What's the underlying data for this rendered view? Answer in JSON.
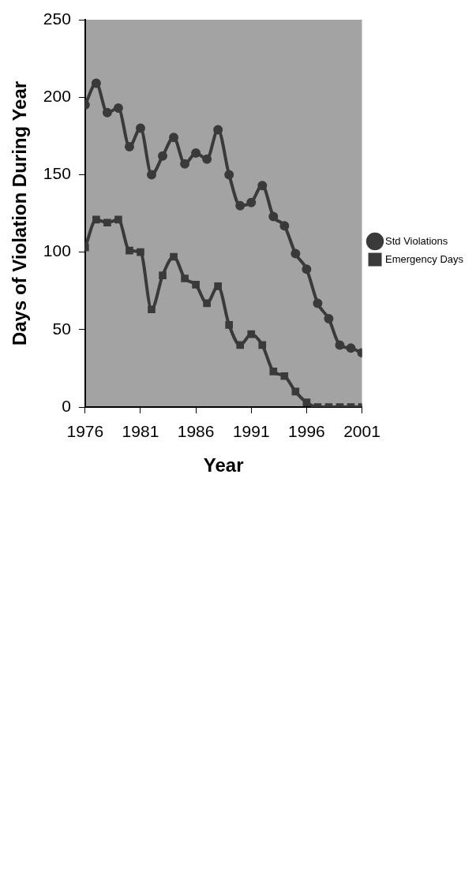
{
  "chart_data": {
    "type": "line",
    "xlabel": "Year",
    "ylabel": "Days of Violation During Year",
    "x": [
      1976,
      1977,
      1978,
      1979,
      1980,
      1981,
      1982,
      1983,
      1984,
      1985,
      1986,
      1987,
      1988,
      1989,
      1990,
      1991,
      1992,
      1993,
      1994,
      1995,
      1996,
      1997,
      1998,
      1999,
      2000,
      2001
    ],
    "series": [
      {
        "name": "Std Violations",
        "color": "#3a3a3a",
        "marker": "circle",
        "values": [
          195,
          209,
          190,
          193,
          168,
          180,
          150,
          162,
          174,
          157,
          164,
          160,
          179,
          150,
          130,
          132,
          143,
          123,
          117,
          99,
          89,
          67,
          57,
          40,
          38,
          35
        ]
      },
      {
        "name": "Emergency Days",
        "color": "#3a3a3a",
        "marker": "square",
        "values": [
          103,
          121,
          119,
          121,
          101,
          100,
          63,
          85,
          97,
          83,
          79,
          67,
          78,
          53,
          40,
          47,
          40,
          23,
          20,
          10,
          3,
          0,
          0,
          0,
          0,
          0
        ]
      }
    ],
    "xlim": [
      1976,
      2001
    ],
    "xticks": [
      1976,
      1981,
      1986,
      1991,
      1996,
      2001
    ],
    "ylim": [
      0,
      250
    ],
    "yticks": [
      0,
      50,
      100,
      150,
      200,
      250
    ],
    "grid": false,
    "legend": "right"
  }
}
